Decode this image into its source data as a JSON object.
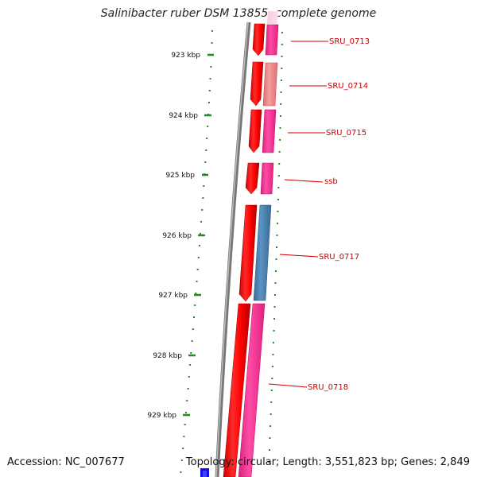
{
  "title": "Salinibacter ruber DSM 13855, complete genome",
  "footer": {
    "accession": "Accession: NC_007677",
    "summary": "Topology: circular; Length: 3,551,823 bp; Genes: 2,849"
  },
  "ruler": {
    "ticks": [
      {
        "label": "923 kbp"
      },
      {
        "label": "924 kbp"
      },
      {
        "label": "925 kbp"
      },
      {
        "label": "926 kbp"
      },
      {
        "label": "927 kbp"
      },
      {
        "label": "928 kbp"
      },
      {
        "label": "929 kbp"
      }
    ]
  },
  "genes": [
    {
      "name": "SRU_0713"
    },
    {
      "name": "SRU_0714"
    },
    {
      "name": "SRU_0715"
    },
    {
      "name": "ssb"
    },
    {
      "name": "SRU_0717"
    },
    {
      "name": "SRU_0718"
    }
  ],
  "colors": {
    "outer_feature": "#ff0000",
    "cds_pink": "#ff3399",
    "cds_light": "#f08080",
    "cds_blue": "#4682b4",
    "backbone": "#808080",
    "ruler": "#228b22",
    "label": "#cc0000"
  }
}
